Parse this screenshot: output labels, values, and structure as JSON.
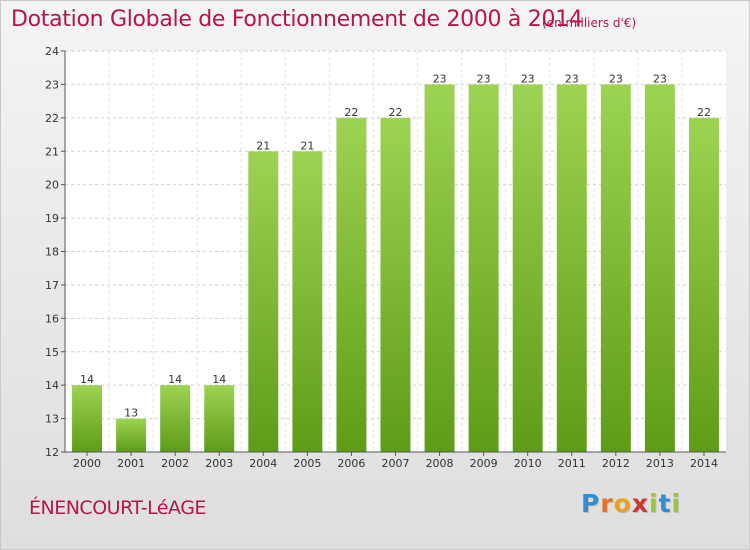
{
  "title": "Dotation Globale de Fonctionnement de 2000 à 2014",
  "subtitle": "(en milliers d'€)",
  "commune": "ÉNENCOURT-LéAGE",
  "logo": {
    "letters": [
      "P",
      "r",
      "o",
      "x",
      "i",
      "t",
      "i"
    ],
    "colors": [
      "#2f8fd0",
      "#e8702a",
      "#e8a21c",
      "#d0342c",
      "#9cc43c",
      "#2f8fd0",
      "#9cc43c"
    ]
  },
  "colors": {
    "bar_top": "#9dd352",
    "bar_bottom": "#5e9c17",
    "title": "#b5154c"
  },
  "chart_data": {
    "type": "bar",
    "categories": [
      "2000",
      "2001",
      "2002",
      "2003",
      "2004",
      "2005",
      "2006",
      "2007",
      "2008",
      "2009",
      "2010",
      "2011",
      "2012",
      "2013",
      "2014"
    ],
    "values": [
      14,
      13,
      14,
      14,
      21,
      21,
      22,
      22,
      23,
      23,
      23,
      23,
      23,
      23,
      22
    ],
    "ylim": [
      12,
      24
    ],
    "yticks": [
      12,
      13,
      14,
      15,
      16,
      17,
      18,
      19,
      20,
      21,
      22,
      23,
      24
    ],
    "grid": true,
    "xlabel": "",
    "ylabel": ""
  }
}
